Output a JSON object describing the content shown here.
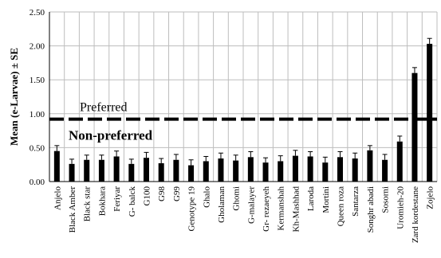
{
  "chart_data": {
    "type": "bar",
    "ylabel": "Mean (e-Larvae) ± SE",
    "ylim": [
      0,
      2.5
    ],
    "yticks": [
      "0.00",
      "0.50",
      "1.00",
      "1.50",
      "2.00",
      "2.50"
    ],
    "categories": [
      "Anjelo",
      "Black Amber",
      "Black star",
      "Bokhara",
      "Feriyar",
      "G- balck",
      "G100",
      "G98",
      "G99",
      "Genotype 19",
      "Ghalo",
      "Gholaman",
      "Ghomi",
      "G-malayer",
      "Gr- rezaeyeh",
      "Kermanshah",
      "Kh-Mashhad",
      "Laroda",
      "Mortini",
      "Queen roza",
      "Santarza",
      "Songhr abadi",
      "Sosorni",
      "Uromieh-20",
      "Zard kordestane",
      "Zojelo"
    ],
    "values": [
      0.45,
      0.26,
      0.32,
      0.32,
      0.37,
      0.26,
      0.35,
      0.27,
      0.32,
      0.24,
      0.3,
      0.34,
      0.31,
      0.36,
      0.28,
      0.3,
      0.38,
      0.37,
      0.28,
      0.36,
      0.34,
      0.46,
      0.32,
      0.59,
      1.6,
      2.03
    ],
    "errors": [
      0.08,
      0.07,
      0.07,
      0.07,
      0.08,
      0.07,
      0.08,
      0.07,
      0.08,
      0.08,
      0.07,
      0.08,
      0.08,
      0.08,
      0.07,
      0.08,
      0.08,
      0.07,
      0.08,
      0.08,
      0.08,
      0.07,
      0.08,
      0.08,
      0.08,
      0.08
    ],
    "bar_color": "#000000",
    "grid": true,
    "threshold": {
      "value": 0.92,
      "label_above": "Preferred",
      "label_below": "Non-preferred"
    }
  }
}
